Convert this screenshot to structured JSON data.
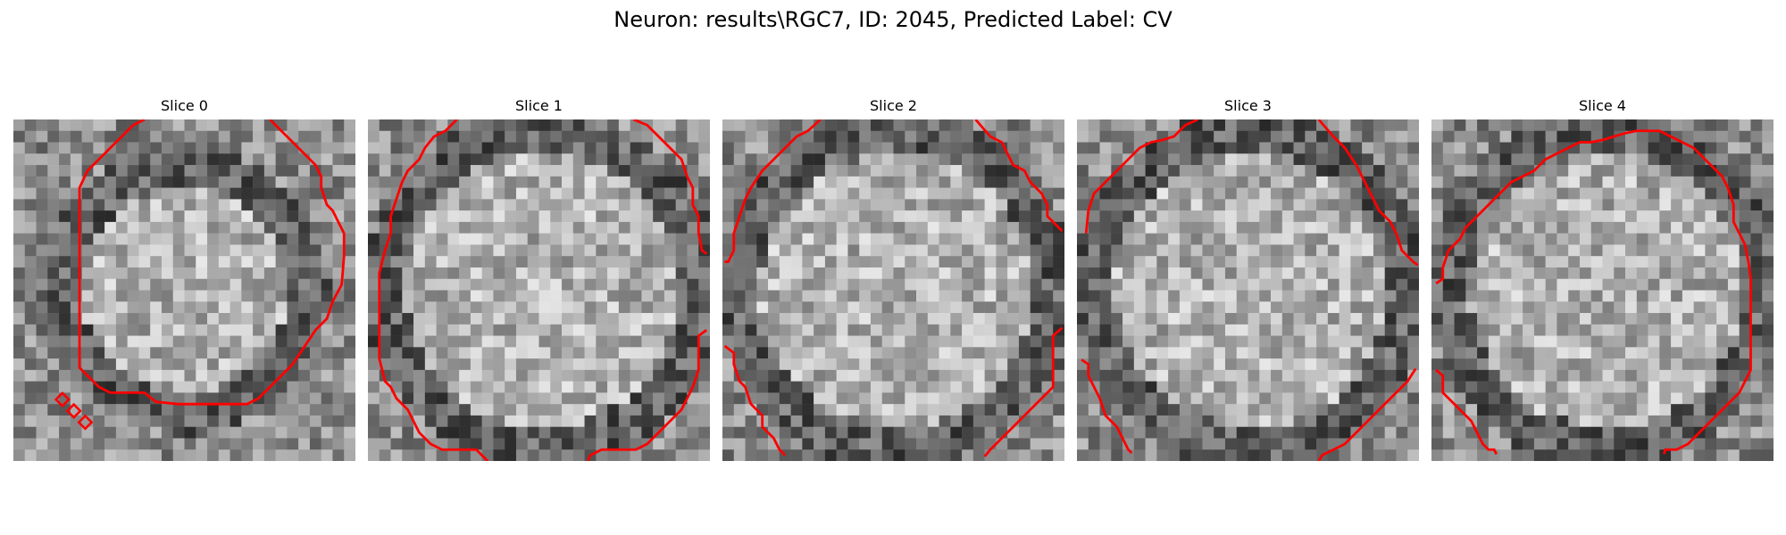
{
  "figure": {
    "title": "Neuron: results\\RGC7, ID: 2045, Predicted Label: CV",
    "colormap": "gray",
    "contour_color": "#ff0000"
  },
  "slices": [
    {
      "title": "Slice 0"
    },
    {
      "title": "Slice 1"
    },
    {
      "title": "Slice 2"
    },
    {
      "title": "Slice 3"
    },
    {
      "title": "Slice 4"
    }
  ]
}
